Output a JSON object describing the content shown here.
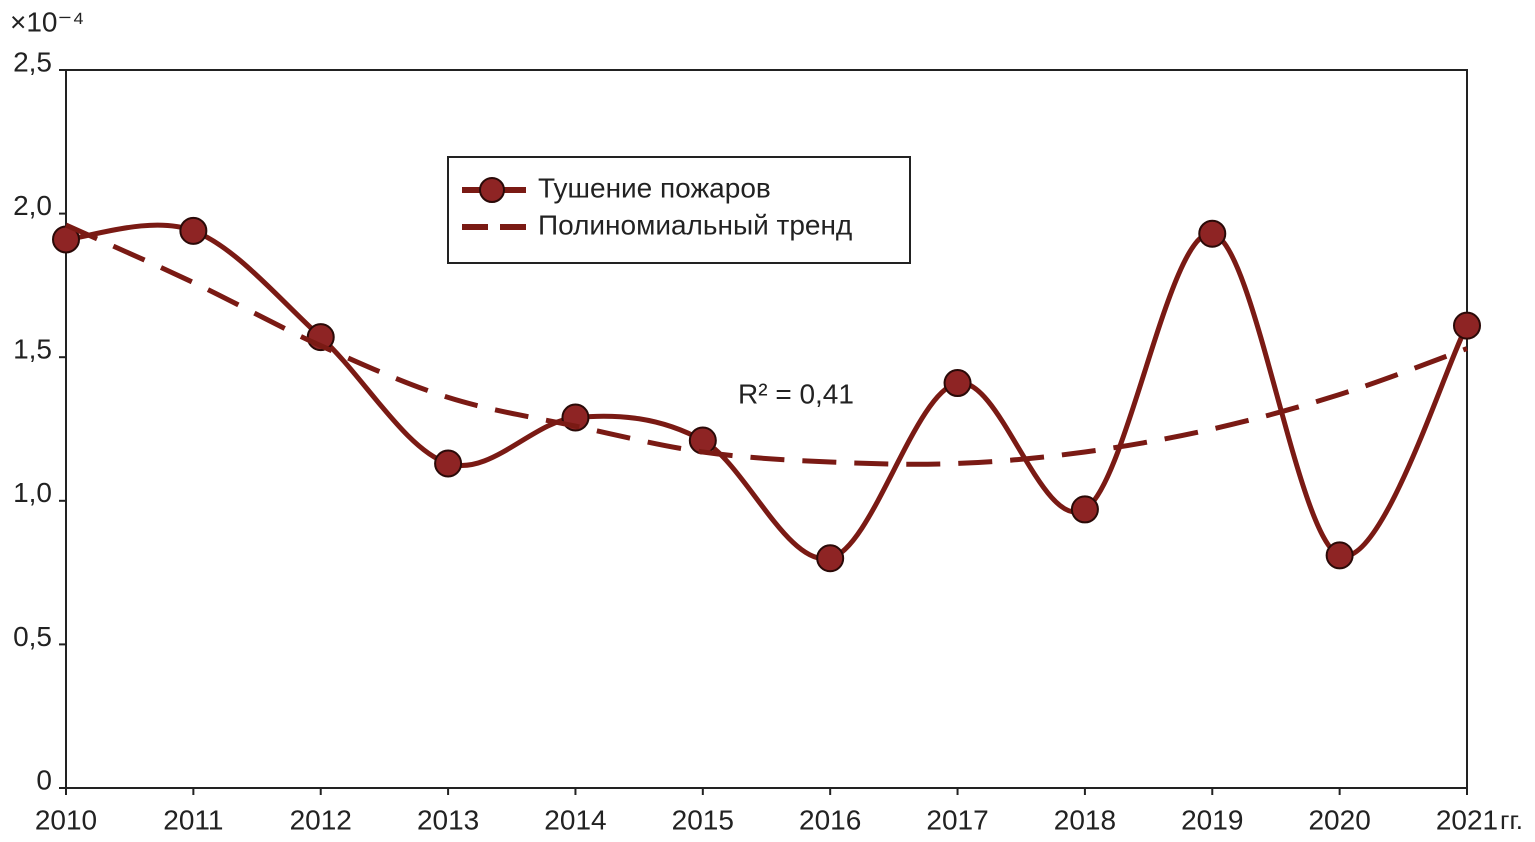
{
  "chart_data": {
    "type": "line",
    "y_multiplier": "×10⁻⁴",
    "x_unit": "гг.",
    "annotation": "R² = 0,41",
    "categories": [
      "2010",
      "2011",
      "2012",
      "2013",
      "2014",
      "2015",
      "2016",
      "2017",
      "2018",
      "2019",
      "2020",
      "2021"
    ],
    "series": [
      {
        "name": "Тушение пожаров",
        "color": "#7a1a14",
        "style": "solid-markers",
        "values": [
          1.91,
          1.94,
          1.57,
          1.13,
          1.29,
          1.21,
          0.8,
          1.41,
          0.97,
          1.93,
          0.81,
          1.61
        ]
      },
      {
        "name": "Полиномиальный тренд",
        "color": "#7a1a14",
        "style": "dashed",
        "values": [
          1.96,
          1.76,
          1.54,
          1.36,
          1.26,
          1.17,
          1.135,
          1.13,
          1.17,
          1.25,
          1.37,
          1.53
        ]
      }
    ],
    "ylim": [
      0,
      2.5
    ],
    "yticks": [
      0,
      {
        "value": 0.5,
        "label": "0,5"
      },
      {
        "value": 1,
        "label": "1,0"
      },
      {
        "value": 1.5,
        "label": "1,5"
      },
      {
        "value": 2,
        "label": "2,0"
      },
      {
        "value": 2.5,
        "label": "2,5"
      }
    ],
    "grid": false
  }
}
